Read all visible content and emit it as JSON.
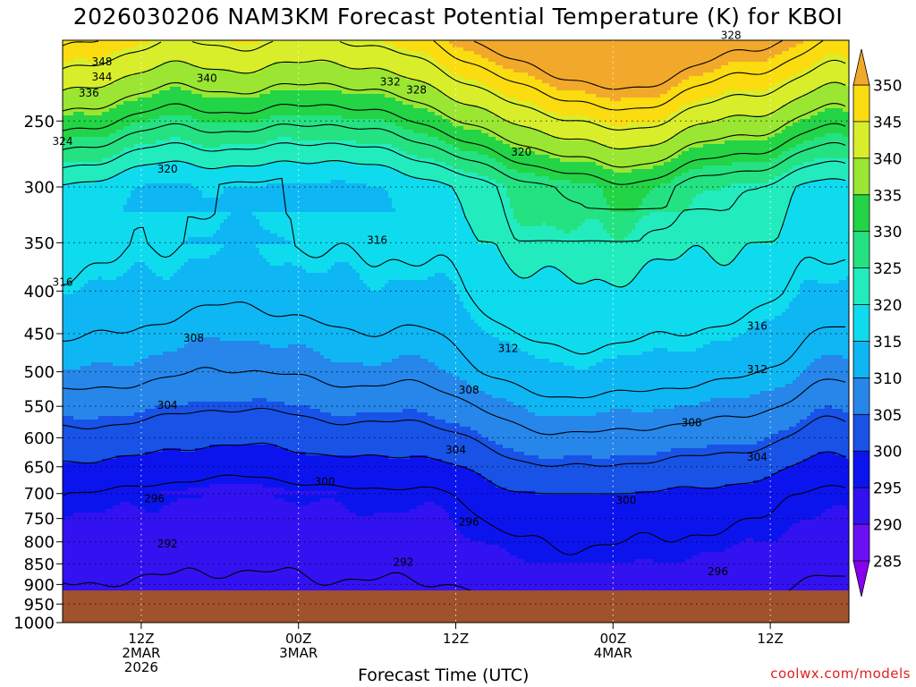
{
  "chart_data": {
    "type": "heatmap",
    "title": "2026030206 NAM3KM Forecast Potential Temperature (K) for KBOI",
    "xlabel": "Forecast Time (UTC)",
    "ylabel": "",
    "y_scale": "pressure (log), inverted",
    "ylim": [
      1000,
      200
    ],
    "y_ticks": [
      250,
      300,
      350,
      400,
      450,
      500,
      550,
      600,
      650,
      700,
      750,
      800,
      850,
      900,
      950,
      1000
    ],
    "x_ticks": [
      {
        "time": "2026-03-02 12Z",
        "label_lines": [
          "12Z",
          "2MAR",
          "2026"
        ]
      },
      {
        "time": "2026-03-03 00Z",
        "label_lines": [
          "00Z",
          "3MAR"
        ]
      },
      {
        "time": "2026-03-03 12Z",
        "label_lines": [
          "12Z"
        ]
      },
      {
        "time": "2026-03-04 00Z",
        "label_lines": [
          "00Z",
          "4MAR"
        ]
      },
      {
        "time": "2026-03-04 12Z",
        "label_lines": [
          "12Z"
        ]
      }
    ],
    "xlim": [
      "2026-03-02 06Z",
      "2026-03-04 18Z"
    ],
    "grid": true,
    "terrain_surface_hPa": 915,
    "colorbar": {
      "levels": [
        285,
        290,
        295,
        300,
        305,
        310,
        315,
        320,
        325,
        330,
        335,
        340,
        345,
        350
      ],
      "colors": [
        "#8800ee",
        "#6a10f4",
        "#3212f0",
        "#0c14ee",
        "#1852e6",
        "#2686ea",
        "#0fb6f4",
        "#0fdbee",
        "#22ecbe",
        "#24e282",
        "#22d446",
        "#9ae632",
        "#d8ee2a",
        "#fadc10",
        "#f2a82a"
      ],
      "placement": "right"
    },
    "contour_interval": 4,
    "contour_labels": [
      {
        "value": "348",
        "time": "2026-03-02 09Z",
        "p": 212
      },
      {
        "value": "344",
        "time": "2026-03-02 09Z",
        "p": 221
      },
      {
        "value": "340",
        "time": "2026-03-02 17Z",
        "p": 222
      },
      {
        "value": "336",
        "time": "2026-03-02 08Z",
        "p": 231
      },
      {
        "value": "332",
        "time": "2026-03-03 07Z",
        "p": 224
      },
      {
        "value": "328",
        "time": "2026-03-03 09Z",
        "p": 229
      },
      {
        "value": "328",
        "time": "2026-03-04 09Z",
        "p": 197
      },
      {
        "value": "324",
        "time": "2026-03-02 06Z",
        "p": 264
      },
      {
        "value": "320",
        "time": "2026-03-02 14Z",
        "p": 285
      },
      {
        "value": "320",
        "time": "2026-03-03 17Z",
        "p": 272
      },
      {
        "value": "316",
        "time": "2026-03-03 06Z",
        "p": 347
      },
      {
        "value": "316",
        "time": "2026-03-02 06Z",
        "p": 390
      },
      {
        "value": "316",
        "time": "2026-03-04 11Z",
        "p": 440
      },
      {
        "value": "312",
        "time": "2026-03-03 16Z",
        "p": 468
      },
      {
        "value": "312",
        "time": "2026-03-04 11Z",
        "p": 496
      },
      {
        "value": "308",
        "time": "2026-03-02 16Z",
        "p": 455
      },
      {
        "value": "308",
        "time": "2026-03-03 13Z",
        "p": 525
      },
      {
        "value": "308",
        "time": "2026-03-04 06Z",
        "p": 575
      },
      {
        "value": "304",
        "time": "2026-03-02 14Z",
        "p": 548
      },
      {
        "value": "304",
        "time": "2026-03-03 12Z",
        "p": 620
      },
      {
        "value": "304",
        "time": "2026-03-04 11Z",
        "p": 632
      },
      {
        "value": "300",
        "time": "2026-03-03 02Z",
        "p": 677
      },
      {
        "value": "300",
        "time": "2026-03-04 01Z",
        "p": 713
      },
      {
        "value": "296",
        "time": "2026-03-02 13Z",
        "p": 709
      },
      {
        "value": "296",
        "time": "2026-03-03 13Z",
        "p": 756
      },
      {
        "value": "296",
        "time": "2026-03-04 08Z",
        "p": 867
      },
      {
        "value": "292",
        "time": "2026-03-02 14Z",
        "p": 803
      },
      {
        "value": "292",
        "time": "2026-03-03 08Z",
        "p": 845
      }
    ],
    "credit": "coolwx.com/models"
  }
}
